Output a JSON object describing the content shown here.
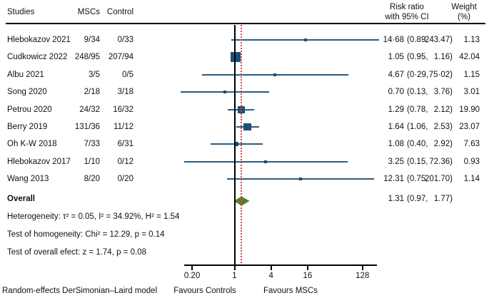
{
  "header": {
    "studies": "Studies",
    "mscs": "MSCs",
    "control": "Control",
    "risk_ratio_line1": "Risk ratio",
    "risk_ratio_line2": "with 95% CI",
    "weight_line1": "Weight",
    "weight_line2": "(%)"
  },
  "chart_data": {
    "type": "forest",
    "x_scale": "log2",
    "x_ticks": [
      0.2,
      1,
      4,
      16,
      128
    ],
    "x_tick_labels": [
      "0.20",
      "1",
      "4",
      "16",
      "128"
    ],
    "null_line_value": 1,
    "reference_line_value": 1.31,
    "x_range": [
      0.11,
      300
    ],
    "rows": [
      {
        "study": "Hlebokazov 2021",
        "mscs": "9/34",
        "control": "0/33",
        "rr": 14.68,
        "lo": 0.89,
        "hi": 243.47,
        "rr_text": "14·68",
        "lo_text": "(0.89,",
        "hi_text": "243.47)",
        "weight": 1.13,
        "weight_text": "1.13"
      },
      {
        "study": "Cudkowicz 2022",
        "mscs": "248/95",
        "control": "207/94",
        "rr": 1.05,
        "lo": 0.95,
        "hi": 1.16,
        "rr_text": "1.05",
        "lo_text": "(0.95,",
        "hi_text": "1.16)",
        "weight": 42.04,
        "weight_text": "42.04"
      },
      {
        "study": "Albu 2021",
        "mscs": "3/5",
        "control": "0/5",
        "rr": 4.67,
        "lo": 0.29,
        "hi": 75.02,
        "rr_text": "4.67",
        "lo_text": "(0·29,",
        "hi_text": "75·02)",
        "weight": 1.15,
        "weight_text": "1.15"
      },
      {
        "study": "Song 2020",
        "mscs": "2/18",
        "control": "3/18",
        "rr": 0.7,
        "lo": 0.13,
        "hi": 3.76,
        "rr_text": "0.70",
        "lo_text": "(0.13,",
        "hi_text": "3.76)",
        "weight": 3.01,
        "weight_text": "3.01"
      },
      {
        "study": "Petrou 2020",
        "mscs": "24/32",
        "control": "16/32",
        "rr": 1.29,
        "lo": 0.78,
        "hi": 2.12,
        "rr_text": "1.29",
        "lo_text": "(0.78,",
        "hi_text": "2.12)",
        "weight": 19.9,
        "weight_text": "19.90"
      },
      {
        "study": "Berry 2019",
        "mscs": "131/36",
        "control": "11/12",
        "rr": 1.64,
        "lo": 1.06,
        "hi": 2.53,
        "rr_text": "1.64",
        "lo_text": "(1.06,",
        "hi_text": "2.53)",
        "weight": 23.07,
        "weight_text": "23.07"
      },
      {
        "study": "Oh K-W 2018",
        "mscs": "7/33",
        "control": "6/31",
        "rr": 1.08,
        "lo": 0.4,
        "hi": 2.92,
        "rr_text": "1.08",
        "lo_text": "(0.40,",
        "hi_text": "2.92)",
        "weight": 7.63,
        "weight_text": "7.63"
      },
      {
        "study": "Hlebokazov 2017",
        "mscs": "1/10",
        "control": "0/12",
        "rr": 3.25,
        "lo": 0.15,
        "hi": 72.36,
        "rr_text": "3.25",
        "lo_text": "(0.15,",
        "hi_text": "72.36)",
        "weight": 0.93,
        "weight_text": "0.93"
      },
      {
        "study": "Wang 2013",
        "mscs": "8/20",
        "control": "0/20",
        "rr": 12.31,
        "lo": 0.75,
        "hi": 201.7,
        "rr_text": "12.31",
        "lo_text": "(0.75,",
        "hi_text": "201.70)",
        "weight": 1.14,
        "weight_text": "1.14"
      }
    ],
    "overall": {
      "label": "Overall",
      "rr": 1.31,
      "lo": 0.97,
      "hi": 1.77,
      "rr_text": "1.31",
      "lo_text": "(0.97,",
      "hi_text": "1.77)"
    }
  },
  "stats": {
    "heterogeneity": "Heterogeneity: τ² = 0.05, I² = 34.92%, H² = 1.54",
    "homogeneity": "Test of homogeneity: Chi² = 12.29, p = 0.14",
    "overall_effect": "Test of overall efect: z = 1.74, p = 0.08"
  },
  "footer": {
    "model": "Random-effects DerSimonian–Laird model",
    "favours_left": "Favours Controls",
    "favours_right": "Favours MSCs"
  },
  "colors": {
    "marker": "#1d4e74",
    "ci_line": "#2c5d80",
    "diamond": "#567d2b",
    "reference_line": "#c0504d",
    "axis": "#000000"
  }
}
